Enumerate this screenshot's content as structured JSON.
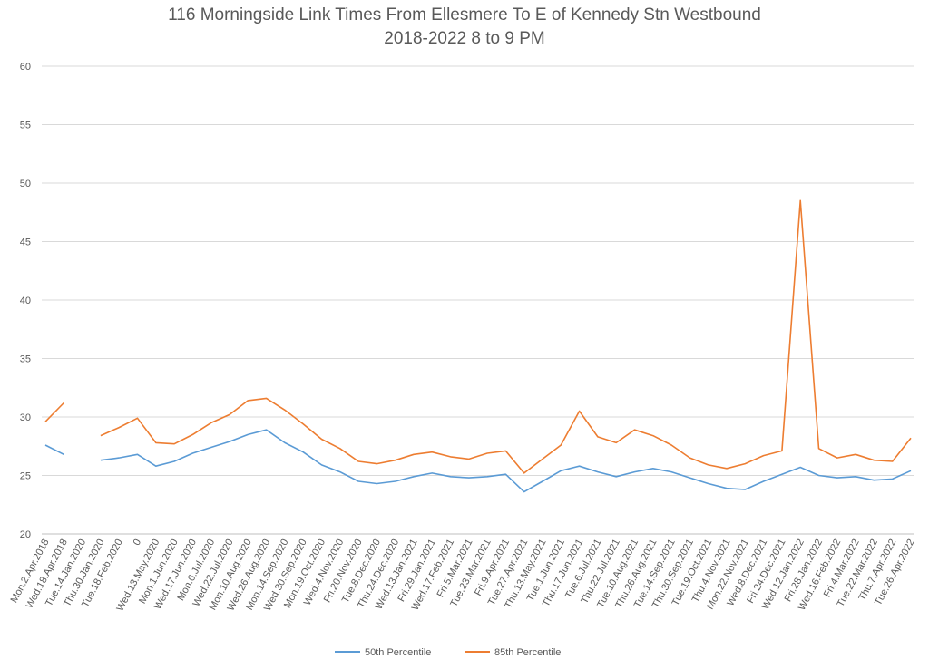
{
  "chart_data": {
    "type": "line",
    "title": "116 Morningside Link Times From Ellesmere To E of Kennedy Stn Westbound",
    "subtitle": "2018-2022 8 to 9 PM",
    "xlabel": "",
    "ylabel": "",
    "ylim": [
      20,
      60
    ],
    "yticks": [
      20,
      25,
      30,
      35,
      40,
      45,
      50,
      55,
      60
    ],
    "grid": true,
    "legend_position": "bottom",
    "categories": [
      "Mon.2.Apr.2018",
      "Wed.18.Apr.2018",
      "Tue.14.Jan.2020",
      "Thu.30.Jan.2020",
      "Tue.18.Feb.2020",
      "0",
      "Wed.13.May.2020",
      "Mon.1.Jun.2020",
      "Wed.17.Jun.2020",
      "Mon.6.Jul.2020",
      "Wed.22.Jul.2020",
      "Mon.10.Aug.2020",
      "Wed.26.Aug.2020",
      "Mon.14.Sep.2020",
      "Wed.30.Sep.2020",
      "Mon.19.Oct.2020",
      "Wed.4.Nov.2020",
      "Fri.20.Nov.2020",
      "Tue.8.Dec.2020",
      "Thu.24.Dec.2020",
      "Wed.13.Jan.2021",
      "Fri.29.Jan.2021",
      "Wed.17.Feb.2021",
      "Fri.5.Mar.2021",
      "Tue.23.Mar.2021",
      "Fri.9.Apr.2021",
      "Tue.27.Apr.2021",
      "Thu.13.May.2021",
      "Tue.1.Jun.2021",
      "Thu.17.Jun.2021",
      "Tue.6.Jul.2021",
      "Thu.22.Jul.2021",
      "Tue.10.Aug.2021",
      "Thu.26.Aug.2021",
      "Tue.14.Sep.2021",
      "Thu.30.Sep.2021",
      "Tue.19.Oct.2021",
      "Thu.4.Nov.2021",
      "Mon.22.Nov.2021",
      "Wed.8.Dec.2021",
      "Fri.24.Dec.2021",
      "Wed.12.Jan.2022",
      "Fri.28.Jan.2022",
      "Wed.16.Feb.2022",
      "Fri.4.Mar.2022",
      "Tue.22.Mar.2022",
      "Thu.7.Apr.2022",
      "Tue.26.Apr.2022"
    ],
    "series": [
      {
        "name": "50th Percentile",
        "color": "#5b9bd5",
        "values": [
          27.6,
          26.8,
          null,
          26.3,
          26.5,
          26.8,
          25.8,
          26.2,
          26.9,
          27.4,
          27.9,
          28.5,
          28.9,
          27.8,
          27.0,
          25.9,
          25.3,
          24.5,
          24.3,
          24.5,
          24.9,
          25.2,
          24.9,
          24.8,
          24.9,
          25.1,
          23.6,
          24.5,
          25.4,
          25.8,
          25.3,
          24.9,
          25.3,
          25.6,
          25.3,
          24.8,
          24.3,
          23.9,
          23.8,
          24.5,
          25.1,
          25.7,
          25.0,
          24.8,
          24.9,
          24.6,
          24.7,
          25.4
        ]
      },
      {
        "name": "85th Percentile",
        "color": "#ed7d31",
        "values": [
          29.6,
          31.2,
          null,
          28.4,
          29.1,
          29.9,
          27.8,
          27.7,
          28.5,
          29.5,
          30.2,
          31.4,
          31.6,
          30.6,
          29.4,
          28.1,
          27.3,
          26.2,
          26.0,
          26.3,
          26.8,
          27.0,
          26.6,
          26.4,
          26.9,
          27.1,
          25.2,
          26.4,
          27.6,
          30.5,
          28.3,
          27.8,
          28.9,
          28.4,
          27.6,
          26.5,
          25.9,
          25.6,
          26.0,
          26.7,
          27.1,
          48.5,
          27.3,
          26.5,
          26.8,
          26.3,
          26.2,
          28.2
        ]
      }
    ]
  }
}
